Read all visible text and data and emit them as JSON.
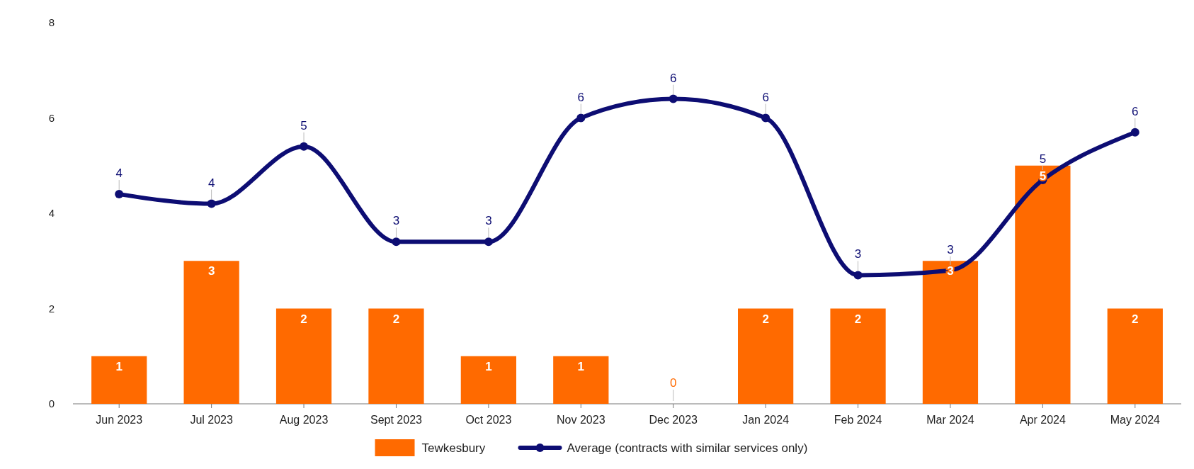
{
  "chart_data": {
    "type": "bar",
    "categories": [
      "Jun 2023",
      "Jul 2023",
      "Aug 2023",
      "Sept 2023",
      "Oct 2023",
      "Nov 2023",
      "Dec 2023",
      "Jan 2024",
      "Feb 2024",
      "Mar 2024",
      "Apr 2024",
      "May 2024"
    ],
    "series": [
      {
        "name": "Tewkesbury",
        "color": "#ff6a00",
        "values": [
          1,
          3,
          2,
          2,
          1,
          1,
          0,
          2,
          2,
          3,
          5,
          2
        ],
        "value_labels": [
          "1",
          "3",
          "2",
          "2",
          "1",
          "1",
          "0",
          "2",
          "2",
          "3",
          "5",
          "2"
        ]
      },
      {
        "name": "Average (contracts with similar services only)",
        "type": "line",
        "color": "#0d0d73",
        "values": [
          4.4,
          4.2,
          5.4,
          3.4,
          3.4,
          6.0,
          6.4,
          6.0,
          2.7,
          2.8,
          4.7,
          5.7
        ],
        "value_labels": [
          "4",
          "4",
          "5",
          "3",
          "3",
          "6",
          "6",
          "6",
          "3",
          "3",
          "5",
          "6"
        ]
      }
    ],
    "ylim": [
      0,
      8
    ],
    "yticks": [
      0,
      2,
      4,
      6,
      8
    ],
    "marker": "circle",
    "legend": "bottom"
  }
}
